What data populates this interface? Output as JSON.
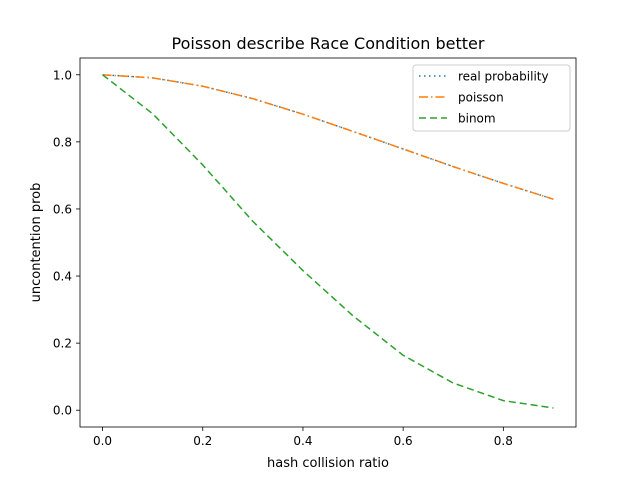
{
  "chart_data": {
    "type": "line",
    "title": "Poisson describe Race Condition better",
    "xlabel": "hash collision ratio",
    "ylabel": "uncontention prob",
    "xlim": [
      -0.045,
      0.945
    ],
    "ylim": [
      -0.05,
      1.05
    ],
    "x_ticks": [
      0.0,
      0.2,
      0.4,
      0.6,
      0.8
    ],
    "x_tick_labels": [
      "0.0",
      "0.2",
      "0.4",
      "0.6",
      "0.8"
    ],
    "y_ticks": [
      0.0,
      0.2,
      0.4,
      0.6,
      0.8,
      1.0
    ],
    "y_tick_labels": [
      "0.0",
      "0.2",
      "0.4",
      "0.6",
      "0.8",
      "1.0"
    ],
    "grid": false,
    "legend_position": "top-right",
    "x": [
      0.0,
      0.1,
      0.2,
      0.3,
      0.4,
      0.5,
      0.6,
      0.7,
      0.8,
      0.9
    ],
    "series": [
      {
        "name": "real probability",
        "color": "#1f77b4",
        "style": "dotted",
        "values": [
          1.0,
          0.9909,
          0.9659,
          0.9288,
          0.8825,
          0.8311,
          0.7788,
          0.7262,
          0.6763,
          0.629
        ]
      },
      {
        "name": "poisson",
        "color": "#ff7f0e",
        "style": "dashdot",
        "values": [
          1.0,
          0.9909,
          0.9659,
          0.9288,
          0.8825,
          0.8311,
          0.7788,
          0.7262,
          0.6763,
          0.629
        ]
      },
      {
        "name": "binom",
        "color": "#2ca02c",
        "style": "dashed",
        "values": [
          1.0,
          0.8838,
          0.7312,
          0.563,
          0.4164,
          0.2813,
          0.1638,
          0.081,
          0.0286,
          0.0066
        ]
      }
    ]
  }
}
